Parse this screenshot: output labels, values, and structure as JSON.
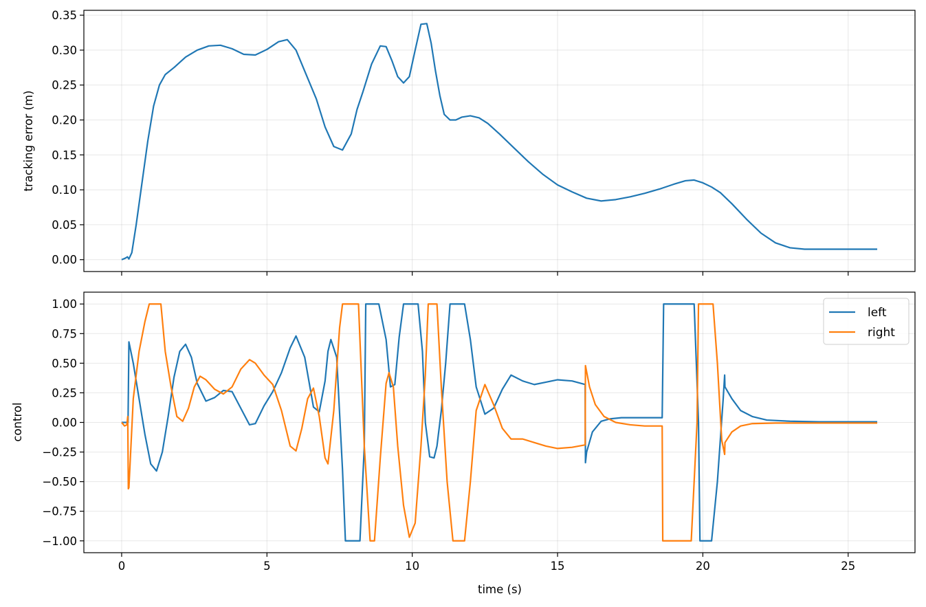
{
  "colors": {
    "left": "#1f77b4",
    "right": "#ff7f0e",
    "error": "#1f77b4"
  },
  "chart_data": [
    {
      "type": "line",
      "xlabel": "",
      "ylabel": "tracking error (m)",
      "xlim": [
        -1.3,
        27.3
      ],
      "ylim": [
        -0.017,
        0.357
      ],
      "x_ticks": [
        0,
        5,
        10,
        15,
        20,
        25
      ],
      "x_tick_labels_visible": false,
      "y_ticks": [
        0.0,
        0.05,
        0.1,
        0.15,
        0.2,
        0.25,
        0.3,
        0.35
      ],
      "y_tick_labels": [
        "0.00",
        "0.05",
        "0.10",
        "0.15",
        "0.20",
        "0.25",
        "0.30",
        "0.35"
      ],
      "grid": true,
      "series": [
        {
          "color": "#1f77b4",
          "x": [
            0,
            0.12,
            0.2,
            0.25,
            0.35,
            0.5,
            0.7,
            0.9,
            1.1,
            1.3,
            1.5,
            1.8,
            2.2,
            2.6,
            3.0,
            3.4,
            3.8,
            4.2,
            4.6,
            5.0,
            5.4,
            5.7,
            6.0,
            6.3,
            6.7,
            7.0,
            7.3,
            7.6,
            7.9,
            8.1,
            8.3,
            8.6,
            8.9,
            9.1,
            9.3,
            9.5,
            9.7,
            9.9,
            10.1,
            10.3,
            10.5,
            10.65,
            10.8,
            10.95,
            11.1,
            11.3,
            11.5,
            11.7,
            12.0,
            12.3,
            12.6,
            13.0,
            13.5,
            14.0,
            14.5,
            15.0,
            15.5,
            16.0,
            16.5,
            17.0,
            17.5,
            18.0,
            18.5,
            19.0,
            19.4,
            19.7,
            20.0,
            20.3,
            20.6,
            21.0,
            21.5,
            22.0,
            22.5,
            23.0,
            23.5,
            24.0,
            25.0,
            26.0
          ],
          "y": [
            0.0,
            0.002,
            0.004,
            0.001,
            0.01,
            0.05,
            0.11,
            0.17,
            0.22,
            0.25,
            0.265,
            0.275,
            0.29,
            0.3,
            0.306,
            0.307,
            0.302,
            0.294,
            0.293,
            0.301,
            0.312,
            0.315,
            0.3,
            0.27,
            0.23,
            0.19,
            0.162,
            0.157,
            0.18,
            0.215,
            0.24,
            0.28,
            0.306,
            0.305,
            0.285,
            0.262,
            0.253,
            0.262,
            0.3,
            0.337,
            0.338,
            0.31,
            0.27,
            0.235,
            0.208,
            0.2,
            0.2,
            0.204,
            0.206,
            0.203,
            0.195,
            0.18,
            0.16,
            0.14,
            0.122,
            0.107,
            0.097,
            0.088,
            0.084,
            0.086,
            0.09,
            0.095,
            0.101,
            0.108,
            0.113,
            0.114,
            0.11,
            0.104,
            0.096,
            0.08,
            0.058,
            0.038,
            0.024,
            0.017,
            0.015,
            0.015,
            0.015,
            0.015
          ]
        }
      ]
    },
    {
      "type": "line",
      "xlabel": "time (s)",
      "ylabel": "control",
      "xlim": [
        -1.3,
        27.3
      ],
      "ylim": [
        -1.1,
        1.1
      ],
      "x_ticks": [
        0,
        5,
        10,
        15,
        20,
        25
      ],
      "x_tick_labels": [
        "0",
        "5",
        "10",
        "15",
        "20",
        "25"
      ],
      "y_ticks": [
        -1.0,
        -0.75,
        -0.5,
        -0.25,
        0.0,
        0.25,
        0.5,
        0.75,
        1.0
      ],
      "y_tick_labels": [
        "−1.00",
        "−0.75",
        "−0.50",
        "−0.25",
        "0.00",
        "0.25",
        "0.50",
        "0.75",
        "1.00"
      ],
      "grid": true,
      "legend_position": "top-right",
      "series": [
        {
          "name": "left",
          "color": "#1f77b4",
          "x": [
            0,
            0.1,
            0.2,
            0.22,
            0.25,
            0.4,
            0.6,
            0.8,
            1.0,
            1.2,
            1.4,
            1.6,
            1.8,
            2.0,
            2.2,
            2.4,
            2.6,
            2.9,
            3.2,
            3.5,
            3.8,
            4.1,
            4.4,
            4.6,
            4.9,
            5.2,
            5.5,
            5.8,
            6.0,
            6.3,
            6.6,
            6.8,
            7.0,
            7.1,
            7.2,
            7.4,
            7.6,
            7.7,
            8.2,
            8.35,
            8.4,
            8.85,
            9.1,
            9.25,
            9.4,
            9.55,
            9.7,
            9.8,
            10.2,
            10.35,
            10.45,
            10.6,
            10.75,
            10.85,
            11.0,
            11.15,
            11.3,
            11.35,
            11.8,
            12.0,
            12.2,
            12.5,
            12.8,
            13.1,
            13.4,
            13.8,
            14.2,
            14.6,
            15.0,
            15.5,
            15.95,
            15.96,
            16.0,
            16.2,
            16.5,
            16.8,
            17.2,
            18.0,
            18.6,
            18.65,
            19.7,
            19.85,
            19.9,
            20.3,
            20.5,
            20.7,
            20.75,
            20.76,
            21.0,
            21.3,
            21.7,
            22.2,
            23.0,
            24.0,
            25.0,
            26.0
          ],
          "y": [
            0.0,
            0.0,
            0.0,
            0.0,
            0.68,
            0.5,
            0.2,
            -0.1,
            -0.35,
            -0.41,
            -0.25,
            0.05,
            0.38,
            0.6,
            0.66,
            0.55,
            0.33,
            0.18,
            0.21,
            0.27,
            0.26,
            0.12,
            -0.02,
            -0.01,
            0.14,
            0.26,
            0.42,
            0.63,
            0.73,
            0.55,
            0.13,
            0.09,
            0.35,
            0.6,
            0.7,
            0.55,
            -0.4,
            -1.0,
            -1.0,
            -0.2,
            1.0,
            1.0,
            0.7,
            0.3,
            0.32,
            0.72,
            1.0,
            1.0,
            1.0,
            0.6,
            0.0,
            -0.29,
            -0.3,
            -0.2,
            0.1,
            0.5,
            1.0,
            1.0,
            1.0,
            0.7,
            0.3,
            0.07,
            0.12,
            0.28,
            0.4,
            0.35,
            0.32,
            0.34,
            0.36,
            0.35,
            0.32,
            -0.34,
            -0.25,
            -0.08,
            0.01,
            0.03,
            0.04,
            0.04,
            0.04,
            1.0,
            1.0,
            0.0,
            -1.0,
            -1.0,
            -0.5,
            0.2,
            0.4,
            0.3,
            0.2,
            0.1,
            0.05,
            0.02,
            0.01,
            0.005,
            0.005,
            0.005
          ]
        },
        {
          "name": "right",
          "color": "#ff7f0e",
          "x": [
            0,
            0.1,
            0.18,
            0.21,
            0.23,
            0.25,
            0.4,
            0.6,
            0.8,
            0.95,
            1.35,
            1.5,
            1.7,
            1.9,
            2.1,
            2.3,
            2.5,
            2.7,
            2.9,
            3.2,
            3.5,
            3.8,
            4.1,
            4.4,
            4.6,
            4.9,
            5.2,
            5.5,
            5.8,
            6.0,
            6.2,
            6.4,
            6.6,
            6.8,
            7.0,
            7.1,
            7.3,
            7.5,
            7.6,
            7.75,
            8.15,
            8.35,
            8.55,
            8.7,
            8.9,
            9.1,
            9.2,
            9.35,
            9.5,
            9.7,
            9.9,
            10.1,
            10.3,
            10.45,
            10.55,
            10.85,
            11.0,
            11.2,
            11.4,
            11.5,
            11.8,
            12.0,
            12.2,
            12.5,
            12.8,
            13.1,
            13.4,
            13.8,
            14.2,
            14.6,
            15.0,
            15.5,
            15.95,
            15.96,
            16.1,
            16.3,
            16.6,
            17.0,
            17.5,
            18.0,
            18.6,
            18.62,
            19.6,
            19.8,
            19.85,
            20.35,
            20.5,
            20.65,
            20.75,
            20.76,
            21.0,
            21.3,
            21.7,
            22.5,
            24.0,
            26.0
          ],
          "y": [
            0.0,
            -0.03,
            -0.02,
            0.05,
            -0.56,
            -0.55,
            0.2,
            0.6,
            0.85,
            1.0,
            1.0,
            0.6,
            0.3,
            0.05,
            0.01,
            0.12,
            0.3,
            0.39,
            0.36,
            0.28,
            0.24,
            0.3,
            0.45,
            0.53,
            0.5,
            0.4,
            0.32,
            0.1,
            -0.2,
            -0.24,
            -0.05,
            0.2,
            0.29,
            0.05,
            -0.3,
            -0.35,
            0.1,
            0.8,
            1.0,
            1.0,
            1.0,
            -0.2,
            -1.0,
            -1.0,
            -0.3,
            0.33,
            0.42,
            0.3,
            -0.2,
            -0.7,
            -0.97,
            -0.85,
            -0.2,
            0.4,
            1.0,
            1.0,
            0.3,
            -0.5,
            -1.0,
            -1.0,
            -1.0,
            -0.5,
            0.1,
            0.32,
            0.15,
            -0.05,
            -0.14,
            -0.14,
            -0.17,
            -0.2,
            -0.22,
            -0.21,
            -0.19,
            0.48,
            0.3,
            0.15,
            0.05,
            0.0,
            -0.02,
            -0.03,
            -0.03,
            -1.0,
            -1.0,
            0.0,
            1.0,
            1.0,
            0.5,
            -0.15,
            -0.27,
            -0.17,
            -0.08,
            -0.03,
            -0.01,
            -0.005,
            -0.005,
            -0.005
          ]
        }
      ]
    }
  ]
}
